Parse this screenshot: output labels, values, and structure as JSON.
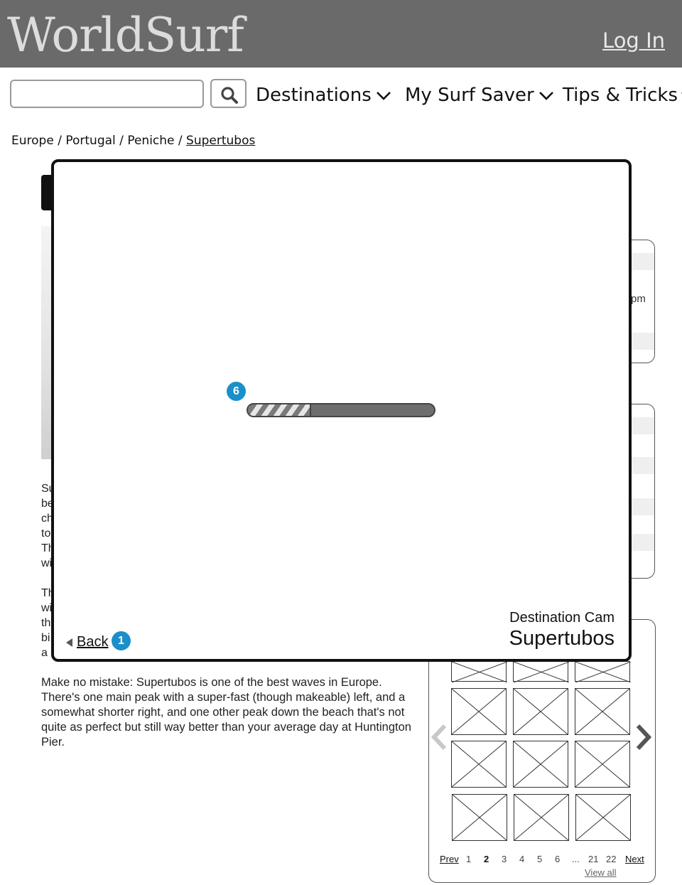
{
  "header": {
    "logo": "WorldSurf",
    "login_label": "Log In"
  },
  "nav": {
    "search_placeholder": "",
    "search_icon": "search-icon",
    "items": [
      {
        "label": "Destinations"
      },
      {
        "label": "My Surf Saver"
      },
      {
        "label": "Tips & Tricks"
      }
    ]
  },
  "breadcrumb": {
    "items": [
      "Europe",
      "Portugal",
      "Peniche"
    ],
    "current": "Supertubos",
    "separator": " / "
  },
  "background": {
    "text_fragments": [
      "Su",
      "be",
      "ch",
      "to",
      "Th",
      "wi",
      "Th",
      "wi",
      "th",
      "bi",
      "a"
    ],
    "pm_fragment": "pm",
    "description": "Make no mistake: Supertubos is one of the best waves in Europe. There's one main peak with a super-fast (though makeable) left, and a somewhat shorter right, and one other peak down the beach that's not quite as perfect but still way better than your average day at Huntington Pier."
  },
  "gallery": {
    "prev_label": "Prev",
    "next_label": "Next",
    "pages": [
      "1",
      "2",
      "3",
      "4",
      "5",
      "6",
      "...",
      "21",
      "22"
    ],
    "active_page": "2",
    "view_all_label": "View all"
  },
  "modal": {
    "progress_badge": "6",
    "progress": 0.34,
    "cam_label": "Destination Cam",
    "cam_name": "Supertubos",
    "back_label": "Back",
    "back_badge": "1"
  },
  "colors": {
    "header_bg": "#6a6a6a",
    "badge": "#1a8fc9"
  }
}
